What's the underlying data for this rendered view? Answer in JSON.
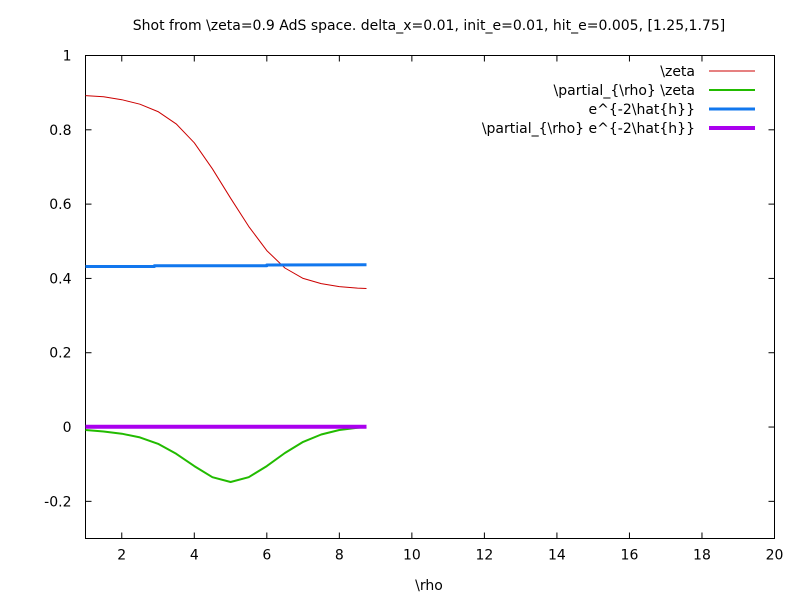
{
  "chart_data": {
    "type": "line",
    "title": "Shot from \\zeta=0.9 AdS space. delta_x=0.01, init_e=0.01, hit_e=0.005, [1.25,1.75]",
    "xlabel": "\\rho",
    "ylabel": "",
    "xlim": [
      1,
      20
    ],
    "ylim": [
      -0.3,
      1
    ],
    "xticks": [
      2,
      4,
      6,
      8,
      10,
      12,
      14,
      16,
      18,
      20
    ],
    "yticks": [
      -0.2,
      0,
      0.2,
      0.4,
      0.6,
      0.8,
      1
    ],
    "ytick_labels": [
      "-0.2",
      "0",
      "0.2",
      "0.4",
      "0.6",
      "0.8",
      "1"
    ],
    "grid": false,
    "legend_position": "top-right",
    "series": [
      {
        "name": "\\zeta",
        "color": "#cc0000",
        "x": [
          1,
          1.5,
          2,
          2.5,
          3,
          3.5,
          4,
          4.5,
          5,
          5.5,
          6,
          6.5,
          7,
          7.5,
          8,
          8.5,
          8.75
        ],
        "y": [
          0.892,
          0.889,
          0.881,
          0.869,
          0.849,
          0.816,
          0.765,
          0.695,
          0.616,
          0.54,
          0.475,
          0.428,
          0.4,
          0.386,
          0.378,
          0.374,
          0.373
        ]
      },
      {
        "name": "\\partial_{\\rho} \\zeta",
        "color": "#22bb00",
        "x": [
          1,
          1.5,
          2,
          2.5,
          3,
          3.5,
          4,
          4.5,
          5,
          5.5,
          6,
          6.5,
          7,
          7.5,
          8,
          8.5,
          8.75
        ],
        "y": [
          -0.008,
          -0.012,
          -0.018,
          -0.028,
          -0.045,
          -0.072,
          -0.105,
          -0.135,
          -0.148,
          -0.135,
          -0.105,
          -0.07,
          -0.04,
          -0.02,
          -0.008,
          -0.002,
          0.0
        ]
      },
      {
        "name": "e^{-2\\hat{h}}",
        "color": "#1177ee",
        "x": [
          1,
          2.9,
          2.9,
          6,
          6,
          8.75
        ],
        "y": [
          0.432,
          0.432,
          0.434,
          0.434,
          0.436,
          0.437
        ]
      },
      {
        "name": "\\partial_{\\rho} e^{-2\\hat{h}}",
        "color": "#aa00ee",
        "x": [
          1,
          8.75
        ],
        "y": [
          0.001,
          0.001
        ]
      }
    ]
  }
}
